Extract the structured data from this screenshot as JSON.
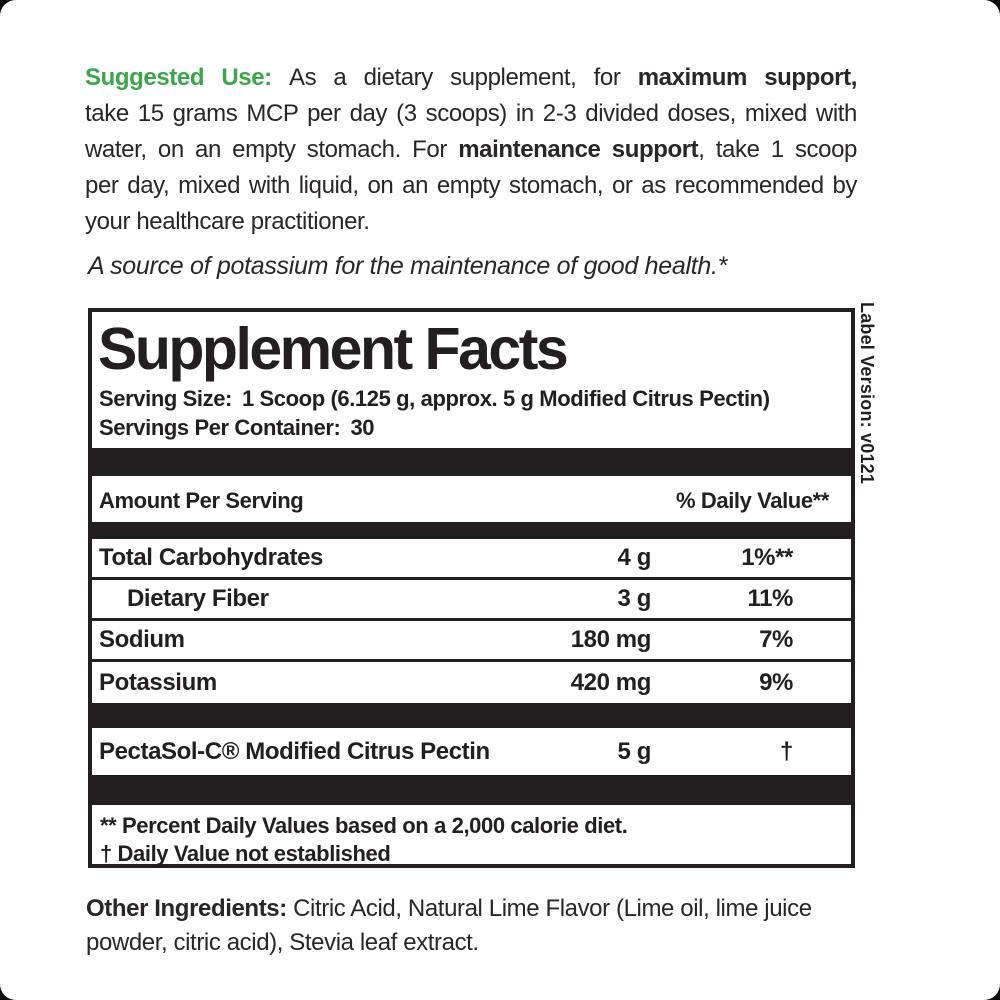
{
  "colors": {
    "green": "#3aa64b",
    "ink": "#231f20"
  },
  "suggested_use": {
    "lines": [
      {
        "green": "Suggested Use: ",
        "normal": "As a dietary supplement, for ",
        "bold": "maximum support,"
      },
      {
        "normal": "take 15 grams MCP per day (3 scoops) in 2-3 divided doses, mixed with"
      },
      {
        "normal": "water, on an empty stomach. For ",
        "bold": "maintenance support",
        "normal2": ", take 1 scoop"
      },
      {
        "normal": "per day, mixed with liquid, on an empty stomach, or as recommended by"
      },
      {
        "normal": "your healthcare practitioner."
      }
    ]
  },
  "tagline": "A source of potassium for the maintenance of good health.*",
  "facts": {
    "title": "Supplement Facts",
    "serving_size_label": "Serving Size:",
    "serving_size_value": "1 Scoop (6.125 g, approx. 5 g Modified Citrus Pectin)",
    "servings_label": "Servings Per Container:",
    "servings_value": "30",
    "header": {
      "amount": "Amount Per Serving",
      "dv": "% Daily Value**"
    },
    "rows": [
      {
        "label": "Total Carbohydrates",
        "amount": "4 g",
        "dv": "1%**"
      },
      {
        "label": "Dietary Fiber",
        "amount": "3 g",
        "dv": "11%"
      },
      {
        "label": "Sodium",
        "amount": "180 mg",
        "dv": "7%"
      },
      {
        "label": "Potassium",
        "amount": "420 mg",
        "dv": "9%"
      }
    ],
    "blend_row": {
      "label": "PectaSol-C® Modified Citrus Pectin",
      "amount": "5 g",
      "dv": "†"
    },
    "footnotes": [
      "** Percent Daily Values based on a 2,000 calorie diet.",
      "† Daily Value not established"
    ]
  },
  "other_ingredients": {
    "label": "Other Ingredients:",
    "text": " Citric Acid, Natural Lime Flavor (Lime oil, lime juice powder, citric acid), Stevia leaf extract."
  },
  "label_version": "Label Version: v0121"
}
